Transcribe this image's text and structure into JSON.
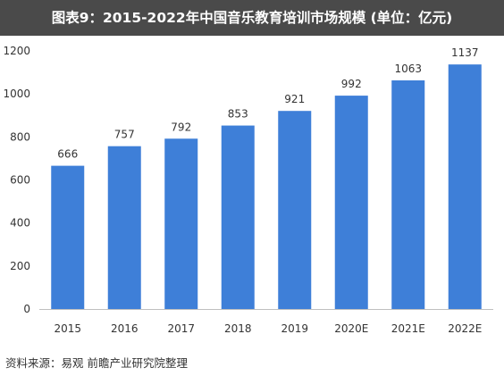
{
  "header": {
    "title": "图表9：2015-2022年中国音乐教育培训市场规模 (单位：亿元)"
  },
  "footer": {
    "source": "资料来源：易观 前瞻产业研究院整理"
  },
  "colors": {
    "bar": "#3e7fd8",
    "axis": "#bfbfbf",
    "title_background": "#4a4a4a"
  },
  "chart_data": {
    "type": "bar",
    "title": "图表9：2015-2022年中国音乐教育培训市场规模 (单位：亿元)",
    "categories": [
      "2015",
      "2016",
      "2017",
      "2018",
      "2019",
      "2020E",
      "2021E",
      "2022E"
    ],
    "values": [
      666,
      757,
      792,
      853,
      921,
      992,
      1063,
      1137
    ],
    "xlabel": "",
    "ylabel": "",
    "ylim": [
      0,
      1200
    ],
    "yticks": [
      0,
      200,
      400,
      600,
      800,
      1000,
      1200
    ],
    "grid": false,
    "legend": "none",
    "data_labels": true
  }
}
